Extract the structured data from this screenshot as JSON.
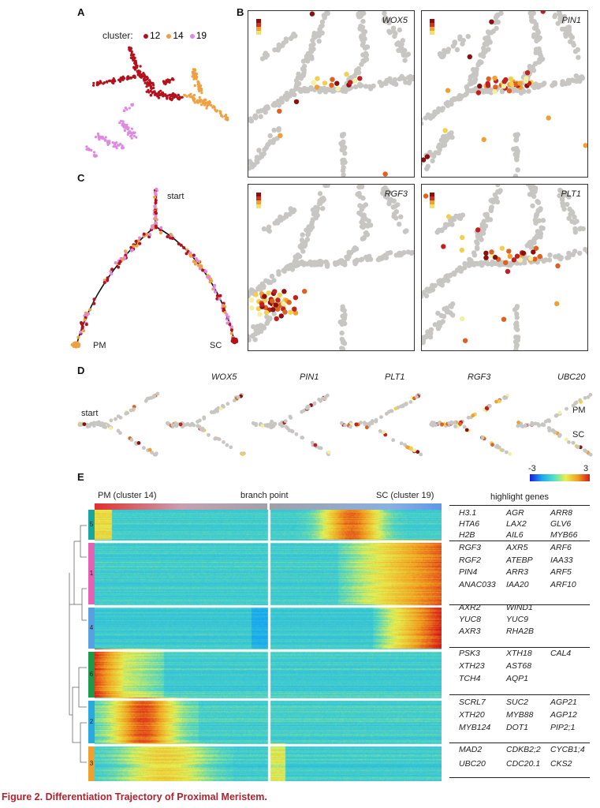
{
  "panels": {
    "a": "A",
    "b": "B",
    "c": "C",
    "d": "D",
    "e": "E"
  },
  "panel_a": {
    "legend_title": "cluster:",
    "legend_items": [
      {
        "label": "12",
        "color": "#b3121d"
      },
      {
        "label": "14",
        "color": "#f0a040"
      },
      {
        "label": "19",
        "color": "#e089e0"
      }
    ]
  },
  "panel_b": {
    "genes": [
      "WOX5",
      "PIN1",
      "RGF3",
      "PLT1"
    ]
  },
  "panel_c": {
    "start": "start",
    "pm": "PM",
    "sc": "SC"
  },
  "panel_d": {
    "start": "start",
    "genes": [
      "WOX5",
      "PIN1",
      "PLT1",
      "RGF3",
      "UBC20"
    ],
    "pm": "PM",
    "sc": "SC"
  },
  "panel_e": {
    "left_label": "PM (cluster 14)",
    "mid_label": "branch point",
    "right_label": "SC (cluster 19)",
    "scale_min": "-3",
    "scale_max": "3",
    "highlight_title": "highlight genes",
    "clusters": [
      {
        "id": "5",
        "color": "#1aa6a0"
      },
      {
        "id": "1",
        "color": "#e660b4"
      },
      {
        "id": "4",
        "color": "#5a9fe0"
      },
      {
        "id": "6",
        "color": "#1c9a4a"
      },
      {
        "id": "2",
        "color": "#2aa8e0"
      },
      {
        "id": "3",
        "color": "#f0a030"
      }
    ],
    "gene_blocks": [
      [
        [
          "H3.1",
          "AGR",
          "ARR8"
        ],
        [
          "HTA6",
          "LAX2",
          "GLV6"
        ],
        [
          "H2B",
          "AIL6",
          "MYB66"
        ]
      ],
      [
        [
          "RGF3",
          "AXR5",
          "ARF6"
        ],
        [
          "RGF2",
          "ATEBP",
          "IAA33"
        ],
        [
          "PIN4",
          "ARR3",
          "ARF5"
        ],
        [
          "ANAC033",
          "IAA20",
          "ARF10"
        ]
      ],
      [
        [
          "AXR2",
          "WIND1",
          ""
        ],
        [
          "YUC8",
          "YUC9",
          ""
        ],
        [
          "AXR3",
          "RHA2B",
          ""
        ]
      ],
      [
        [
          "PSK3",
          "XTH18",
          "CAL4"
        ],
        [
          "XTH23",
          "AST68",
          ""
        ],
        [
          "TCH4",
          "AQP1",
          ""
        ]
      ],
      [
        [
          "SCRL7",
          "SUC2",
          "AGP21"
        ],
        [
          "XTH20",
          "MYB88",
          "AGP12"
        ],
        [
          "MYB124",
          "DOT1",
          "PIP2;1"
        ]
      ],
      [
        [
          "MAD2",
          "CDKB2;2",
          "CYCB1;4"
        ],
        [
          "UBC20",
          "CDC20.1",
          "CKS2"
        ]
      ]
    ]
  },
  "caption": "Figure 2.  Differentiation Trajectory of Proximal Meristem."
}
